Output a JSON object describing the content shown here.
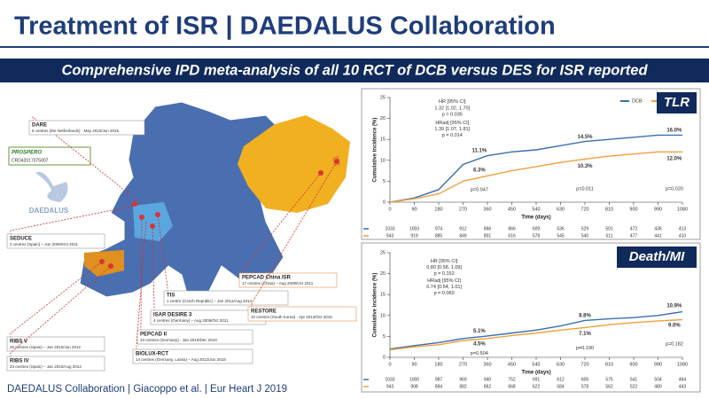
{
  "title": "Treatment of ISR | DAEDALUS Collaboration",
  "banner": "Comprehensive IPD meta-analysis of all 10 RCT of DCB versus DES for ISR reported",
  "footer": "DAEDALUS Collaboration | Giacoppo et al. | Eur Heart J 2019",
  "map": {
    "prospero": {
      "name": "PROSPERO",
      "id": "CRD42017075007"
    },
    "logo": "DAEDALUS",
    "trials": [
      {
        "name": "DARE",
        "detail": "8 centres (the Netherlands) · May 2010/Jun 2015"
      },
      {
        "name": "SEDUCE",
        "detail": "2 centres (Spain) – Jun 2009/Oct 2011"
      },
      {
        "name": "RIBS V",
        "detail": "25 centres (Spain) – Jan 2010/Jun 2012"
      },
      {
        "name": "RIBS IV",
        "detail": "23 centres (Spain) – Jan 2010/Aug 2013"
      },
      {
        "name": "TIS",
        "detail": "1 centre (Czech Republic) – Jan 2012/Aug 2014"
      },
      {
        "name": "ISAR DESIRE 3",
        "detail": "4 centres (Germany) – Aug 2009/Oct 2011"
      },
      {
        "name": "PEPCAD II",
        "detail": "10 centres (Germany) · Jan 2010/Dec 2010"
      },
      {
        "name": "BIOLUX-RCT",
        "detail": "14 centres (Germany, Latvia) – Aug 2012/Jun 2018"
      },
      {
        "name": "PEPCAD China ISR",
        "detail": "17 centres (China) – Aug 2009/Oct 2011"
      },
      {
        "name": "RESTORE",
        "detail": "10 centres (South Korea) · Apr 2013/Oct 2015"
      }
    ]
  },
  "chart_data": [
    {
      "type": "line",
      "title": "TLR",
      "xlabel": "Time (days)",
      "ylabel": "Cumulative incidence (%)",
      "x": [
        0,
        90,
        180,
        270,
        360,
        450,
        540,
        630,
        720,
        810,
        900,
        990,
        1080
      ],
      "series": [
        {
          "name": "DCB",
          "color": "#3a6fb0",
          "values": [
            0,
            1,
            3,
            9,
            11.1,
            12,
            12.5,
            13.5,
            14.5,
            15,
            15.5,
            16,
            16
          ]
        },
        {
          "name": "DES",
          "color": "#f0a040",
          "values": [
            0,
            0.8,
            2,
            5,
            6.3,
            7.5,
            8.5,
            9.5,
            10.3,
            11,
            11.5,
            12,
            12
          ]
        }
      ],
      "xlim": [
        0,
        1080
      ],
      "ylim": [
        0,
        25
      ],
      "xticks": [
        0,
        90,
        180,
        270,
        360,
        450,
        540,
        630,
        720,
        810,
        900,
        990,
        1080
      ],
      "yticks": [
        0,
        5,
        10,
        15,
        20,
        25
      ],
      "annotations": [
        "HR [95% CI]",
        "1.32 [1.02, 1.70]",
        "p = 0.035",
        "HRadj [95% CI]",
        "1.39 [1.07, 1.81]",
        "p = 0.014",
        "11.1%",
        "6.3%",
        "p=0.047",
        "14.5%",
        "10.3%",
        "p=0.011",
        "16.0%",
        "12.0%",
        "p=0.020"
      ],
      "risk_table": [
        [
          1033,
          1003,
          974,
          912,
          866,
          866,
          609,
          536,
          529,
          501,
          472,
          436,
          413
        ],
        [
          943,
          919,
          885,
          849,
          801,
          616,
          578,
          545,
          540,
          511,
          477,
          441,
          410
        ]
      ]
    },
    {
      "type": "line",
      "title": "Death/MI",
      "xlabel": "Time (days)",
      "ylabel": "Cumulative incidence (%)",
      "x": [
        0,
        90,
        180,
        270,
        360,
        450,
        540,
        630,
        720,
        810,
        900,
        990,
        1080
      ],
      "series": [
        {
          "name": "DCB",
          "color": "#3a6fb0",
          "values": [
            2,
            2.8,
            3.5,
            4.5,
            5.1,
            5.8,
            6.5,
            7.5,
            8.8,
            9.2,
            9.5,
            10,
            10.9
          ]
        },
        {
          "name": "DES",
          "color": "#f0a040",
          "values": [
            1.8,
            2.5,
            3,
            4,
            4.5,
            5.2,
            5.8,
            6.5,
            7.1,
            7.8,
            8.3,
            8.7,
            9
          ]
        }
      ],
      "xlim": [
        0,
        1080
      ],
      "ylim": [
        0,
        25
      ],
      "xticks": [
        0,
        90,
        180,
        270,
        360,
        450,
        540,
        630,
        720,
        810,
        900,
        990,
        1080
      ],
      "yticks": [
        0,
        5,
        10,
        15,
        20,
        25
      ],
      "annotations": [
        "HR [95% CI]",
        "0.80 [0.58, 1.09]",
        "p = 0.152",
        "HRadj [95% CI]",
        "0.74 [0.54, 1.01]",
        "p = 0.060",
        "5.1%",
        "4.5%",
        "p=0.504",
        "8.8%",
        "7.1%",
        "p=0.190",
        "10.9%",
        "9.0%",
        "p=0.182"
      ],
      "risk_table": [
        [
          1033,
          1000,
          987,
          969,
          940,
          752,
          691,
          612,
          606,
          575,
          541,
          504,
          464
        ],
        [
          943,
          908,
          894,
          882,
          862,
          668,
          622,
          584,
          578,
          562,
          522,
          480,
          443
        ]
      ]
    }
  ]
}
